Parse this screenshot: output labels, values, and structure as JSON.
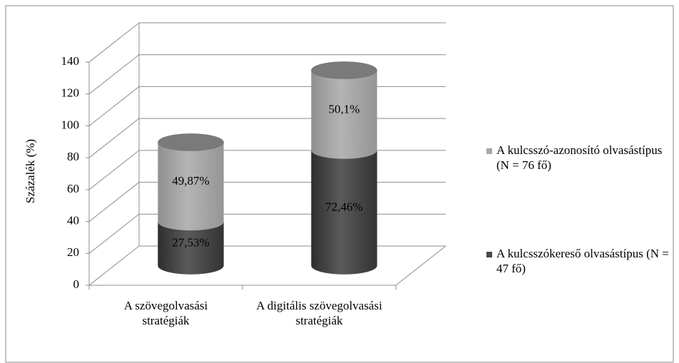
{
  "chart_data": {
    "type": "bar",
    "stacked": true,
    "three_d": true,
    "y_label": "Százalék (%)",
    "categories": [
      "A szövegolvasási stratégiák",
      "A digitális szövegolvasási stratégiák"
    ],
    "series": [
      {
        "name": "A kulcsszókereső olvasástípus (N = 47 fő)",
        "color": "#4a4a4a",
        "values": [
          27.53,
          72.46
        ],
        "value_labels": [
          "27,53%",
          "72,46%"
        ]
      },
      {
        "name": "A kulcsszó-azonosító olvasástípus (N = 76 fő)",
        "color": "#a8a8a8",
        "values": [
          49.87,
          50.1
        ],
        "value_labels": [
          "49,87%",
          "50,1%"
        ]
      }
    ],
    "ylim": [
      0,
      140
    ],
    "yticks": [
      0,
      20,
      40,
      60,
      80,
      100,
      120,
      140
    ],
    "grid": true,
    "legend": "right"
  }
}
